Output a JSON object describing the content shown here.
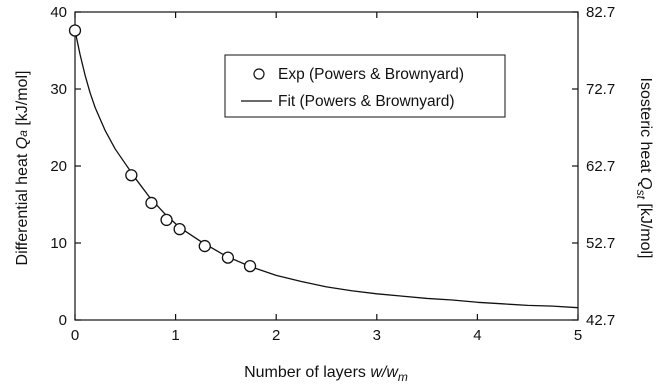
{
  "chart_data": {
    "type": "scatter",
    "title": "",
    "xlabel": {
      "prefix": "Number of layers ",
      "var": "w/w",
      "sub": "m"
    },
    "ylabel": {
      "prefix": "Differential heat ",
      "var": "Q",
      "sub": "a",
      "suffix": " [kJ/mol]"
    },
    "y2label": {
      "prefix": "Isosteric heat ",
      "var": "Q",
      "sub": "st",
      "suffix": "  [kJ/mol]"
    },
    "xlim": [
      0,
      5
    ],
    "ylim": [
      0,
      40
    ],
    "y2lim": [
      42.7,
      82.7
    ],
    "xticks": [
      "0",
      "1",
      "2",
      "3",
      "4",
      "5"
    ],
    "yticks": [
      "0",
      "10",
      "20",
      "30",
      "40"
    ],
    "y2ticks": [
      "42.7",
      "52.7",
      "62.7",
      "72.7",
      "82.7"
    ],
    "grid": false,
    "legend_position": "top-right",
    "series": [
      {
        "name": "Exp (Powers & Brownyard)",
        "kind": "markers",
        "marker": "open-circle",
        "color": "#111111",
        "x": [
          0.0,
          0.56,
          0.76,
          0.91,
          1.04,
          1.29,
          1.52,
          1.74
        ],
        "y": [
          37.6,
          18.8,
          15.2,
          13.0,
          11.8,
          9.6,
          8.1,
          7.0
        ]
      },
      {
        "name": "Fit (Powers & Brownyard)",
        "kind": "line",
        "color": "#111111",
        "x": [
          0.0,
          0.05,
          0.1,
          0.15,
          0.2,
          0.3,
          0.4,
          0.5,
          0.6,
          0.75,
          0.9,
          1.0,
          1.1,
          1.25,
          1.5,
          1.75,
          2.0,
          2.25,
          2.5,
          2.75,
          3.0,
          3.25,
          3.5,
          3.75,
          4.0,
          4.25,
          4.5,
          4.75,
          5.0
        ],
        "y": [
          37.6,
          34.5,
          31.8,
          29.5,
          27.6,
          24.6,
          22.2,
          20.3,
          18.4,
          15.8,
          13.7,
          12.5,
          11.5,
          10.2,
          8.3,
          6.9,
          5.8,
          5.0,
          4.3,
          3.8,
          3.4,
          3.1,
          2.8,
          2.6,
          2.3,
          2.1,
          1.9,
          1.8,
          1.6
        ]
      }
    ]
  }
}
